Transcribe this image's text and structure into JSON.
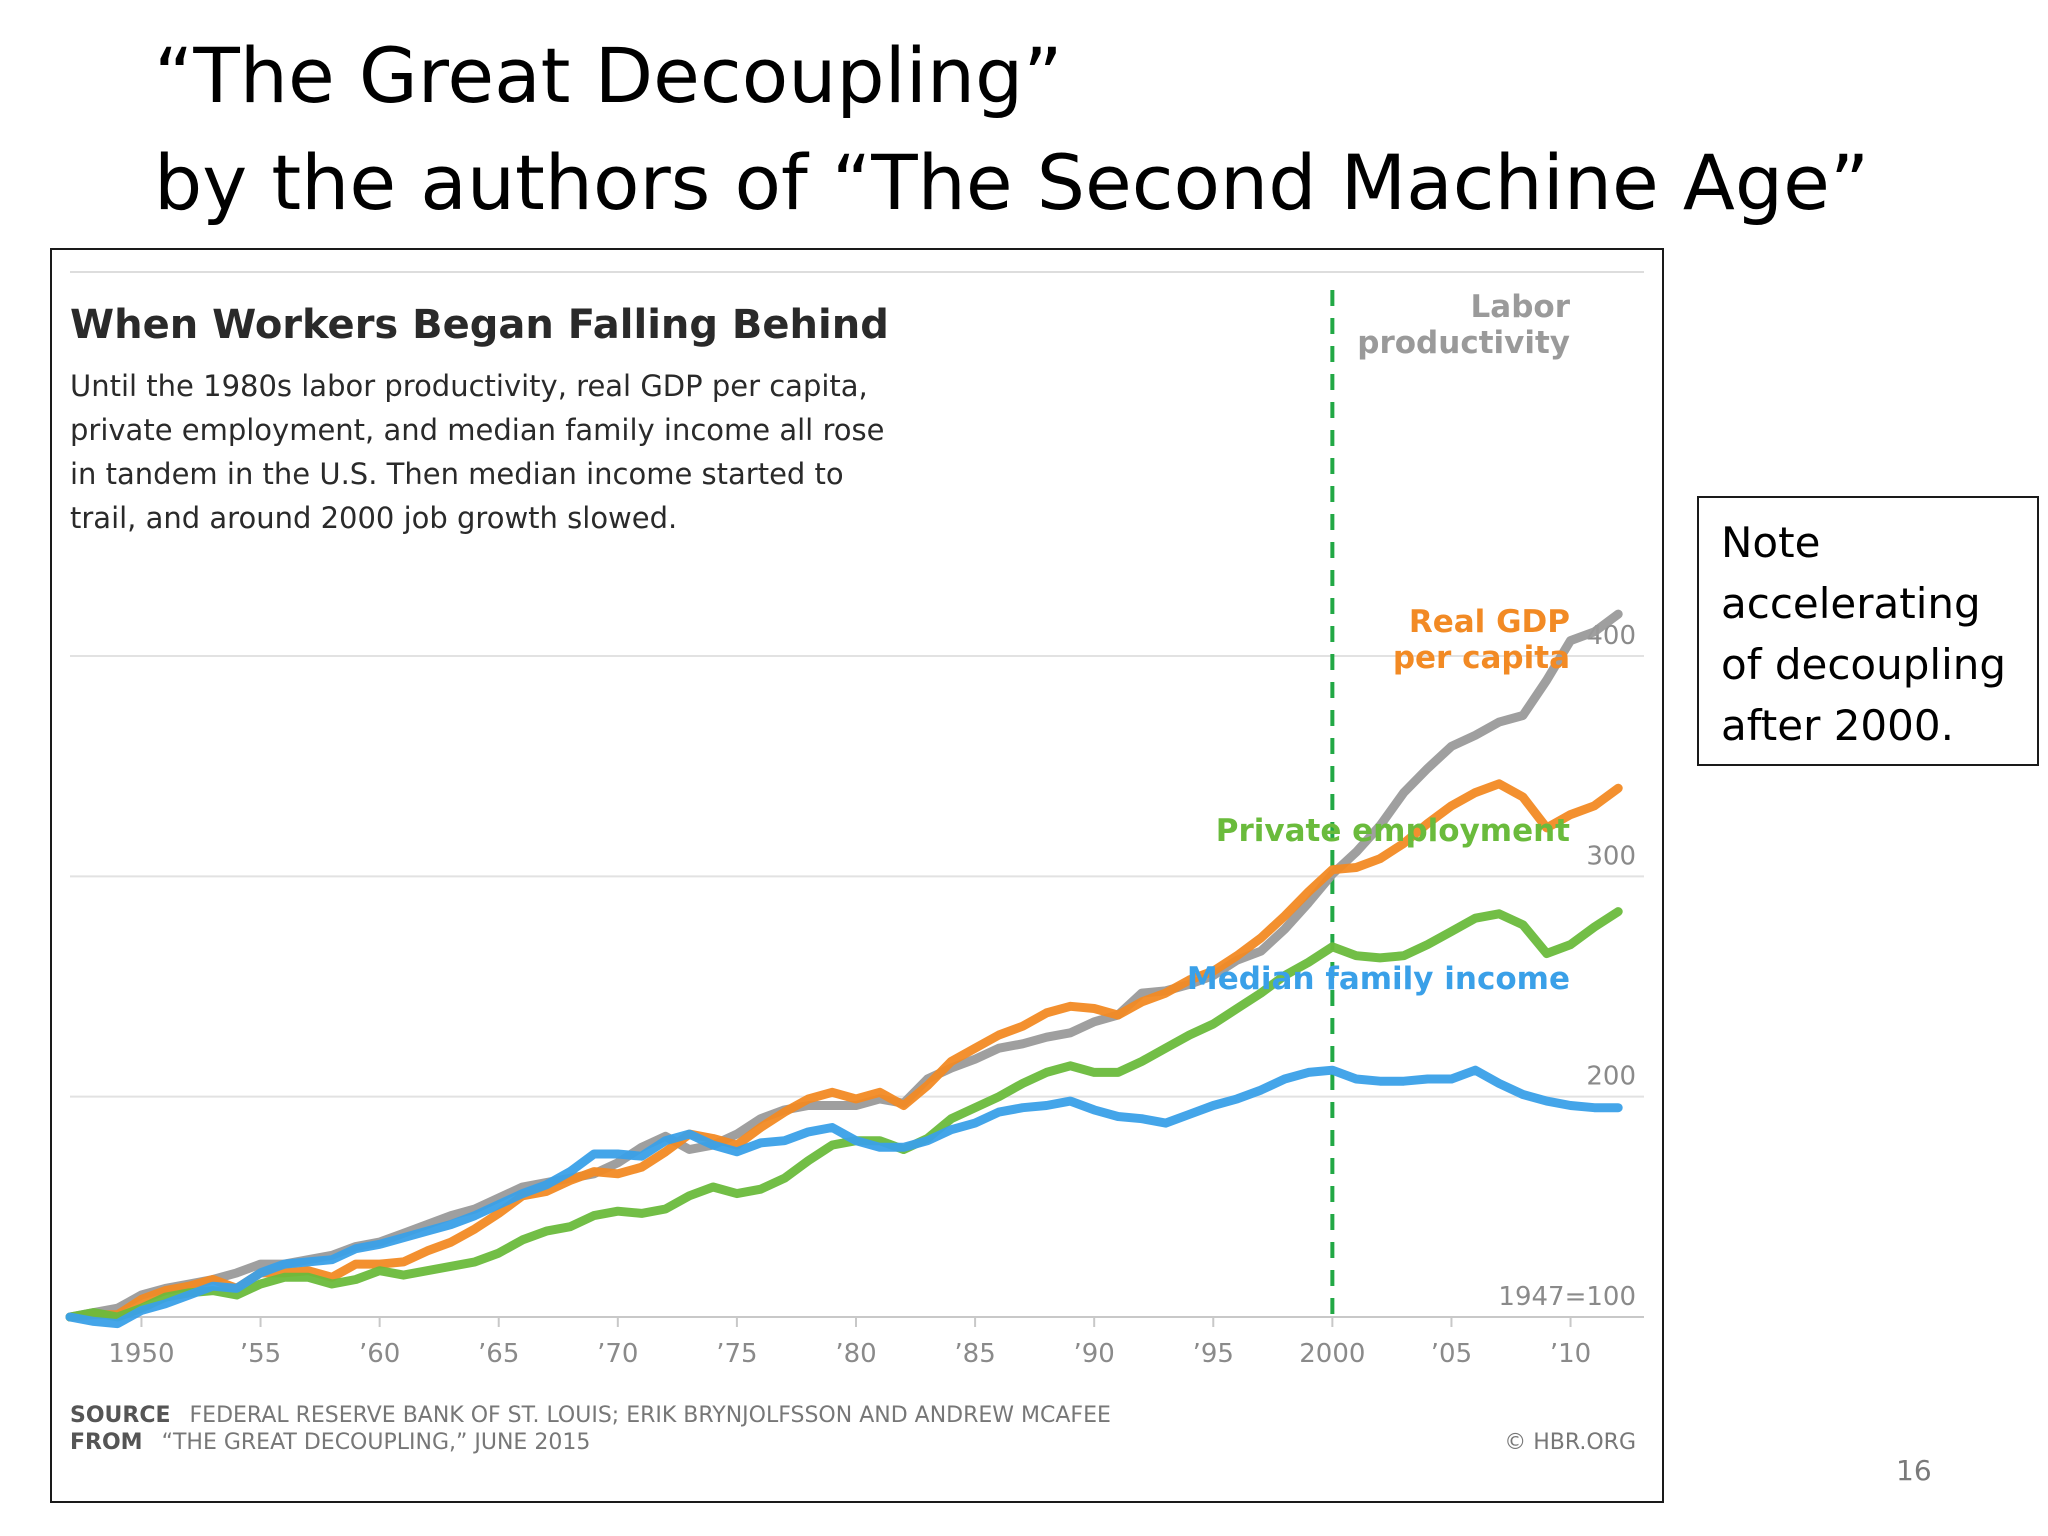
{
  "slide": {
    "title_line1": "“The Great Decoupling”",
    "title_line2": "by the authors of “The Second Machine Age”",
    "note_lines": [
      "Note",
      "accelerating",
      "of decoupling",
      "after 2000."
    ],
    "page_number": "16"
  },
  "chart_data": {
    "type": "line",
    "title": "When Workers Began Falling Behind",
    "subtitle": [
      "Until the 1980s labor productivity, real GDP per capita,",
      "private employment, and median family income all rose",
      "in tandem in the U.S. Then median income started to",
      "trail, and around 2000 job growth slowed."
    ],
    "xlim": [
      1947,
      2013
    ],
    "ylim": [
      100,
      430
    ],
    "x_ticks": [
      {
        "value": 1950,
        "label": "1950"
      },
      {
        "value": 1955,
        "label": "’55"
      },
      {
        "value": 1960,
        "label": "’60"
      },
      {
        "value": 1965,
        "label": "’65"
      },
      {
        "value": 1970,
        "label": "’70"
      },
      {
        "value": 1975,
        "label": "’75"
      },
      {
        "value": 1980,
        "label": "’80"
      },
      {
        "value": 1985,
        "label": "’85"
      },
      {
        "value": 1990,
        "label": "’90"
      },
      {
        "value": 1995,
        "label": "’95"
      },
      {
        "value": 2000,
        "label": "2000"
      },
      {
        "value": 2005,
        "label": "’05"
      },
      {
        "value": 2010,
        "label": "’10"
      }
    ],
    "y_gridlines": [
      {
        "value": 100,
        "label": "1947=100"
      },
      {
        "value": 200,
        "label": "200"
      },
      {
        "value": 300,
        "label": "300"
      },
      {
        "value": 400,
        "label": "400"
      }
    ],
    "vline": {
      "x": 2000,
      "color": "#22a845",
      "style": "dashed"
    },
    "grid": true,
    "legend": "inline labels at line ends",
    "x": [
      1947,
      1948,
      1949,
      1950,
      1951,
      1952,
      1953,
      1954,
      1955,
      1956,
      1957,
      1958,
      1959,
      1960,
      1961,
      1962,
      1963,
      1964,
      1965,
      1966,
      1967,
      1968,
      1969,
      1970,
      1971,
      1972,
      1973,
      1974,
      1975,
      1976,
      1977,
      1978,
      1979,
      1980,
      1981,
      1982,
      1983,
      1984,
      1985,
      1986,
      1987,
      1988,
      1989,
      1990,
      1991,
      1992,
      1993,
      1994,
      1995,
      1996,
      1997,
      1998,
      1999,
      2000,
      2001,
      2002,
      2003,
      2004,
      2005,
      2006,
      2007,
      2008,
      2009,
      2010,
      2011,
      2012
    ],
    "series": [
      {
        "name": "Labor productivity",
        "label_lines": [
          "Labor",
          "productivity"
        ],
        "color": "#9a9a9a",
        "values": [
          100,
          102,
          104,
          110,
          113,
          115,
          117,
          120,
          124,
          124,
          126,
          128,
          132,
          134,
          138,
          142,
          146,
          149,
          154,
          159,
          161,
          163,
          165,
          170,
          177,
          182,
          176,
          178,
          183,
          190,
          194,
          196,
          196,
          196,
          199,
          197,
          208,
          213,
          217,
          222,
          224,
          227,
          229,
          234,
          237,
          247,
          248,
          251,
          255,
          262,
          266,
          276,
          288,
          301,
          311,
          323,
          338,
          349,
          359,
          364,
          370,
          373,
          389,
          407,
          411,
          419
        ]
      },
      {
        "name": "Real GDP per capita",
        "label_lines": [
          "Real GDP",
          "per capita"
        ],
        "color": "#f28a24",
        "values": [
          100,
          101,
          101,
          108,
          112,
          114,
          117,
          113,
          120,
          120,
          121,
          118,
          124,
          124,
          125,
          130,
          134,
          140,
          147,
          155,
          157,
          162,
          166,
          165,
          168,
          175,
          183,
          181,
          178,
          186,
          193,
          199,
          202,
          199,
          202,
          196,
          205,
          216,
          222,
          228,
          232,
          238,
          241,
          240,
          237,
          243,
          247,
          253,
          257,
          264,
          272,
          282,
          293,
          303,
          304,
          308,
          315,
          324,
          332,
          338,
          342,
          336,
          322,
          328,
          332,
          340
        ]
      },
      {
        "name": "Private employment",
        "label_lines": [
          "Private employment"
        ],
        "color": "#6abb3c",
        "values": [
          100,
          102,
          100,
          104,
          109,
          111,
          112,
          110,
          115,
          118,
          118,
          115,
          117,
          121,
          119,
          121,
          123,
          125,
          129,
          135,
          139,
          141,
          146,
          148,
          147,
          149,
          155,
          159,
          156,
          158,
          163,
          171,
          178,
          180,
          180,
          176,
          181,
          190,
          195,
          200,
          206,
          211,
          214,
          211,
          211,
          216,
          222,
          228,
          233,
          240,
          247,
          255,
          261,
          268,
          264,
          263,
          264,
          269,
          275,
          281,
          283,
          278,
          265,
          269,
          277,
          284
        ]
      },
      {
        "name": "Median family income",
        "label_lines": [
          "Median family income"
        ],
        "color": "#3aa0e8",
        "values": [
          100,
          98,
          97,
          103,
          106,
          110,
          114,
          113,
          120,
          124,
          125,
          126,
          131,
          133,
          136,
          139,
          142,
          146,
          151,
          156,
          160,
          166,
          174,
          174,
          173,
          180,
          183,
          178,
          175,
          179,
          180,
          184,
          186,
          180,
          177,
          177,
          180,
          185,
          188,
          193,
          195,
          196,
          198,
          194,
          191,
          190,
          188,
          192,
          196,
          199,
          203,
          208,
          211,
          212,
          208,
          207,
          207,
          208,
          208,
          212,
          206,
          201,
          198,
          196,
          195,
          195
        ]
      }
    ],
    "source_label": "SOURCE",
    "source_text": "FEDERAL RESERVE BANK OF ST. LOUIS; ERIK BRYNJOLFSSON AND ANDREW MCAFEE",
    "from_label": "FROM",
    "from_text": "“THE GREAT DECOUPLING,” JUNE 2015",
    "credit": "© HBR.ORG"
  }
}
